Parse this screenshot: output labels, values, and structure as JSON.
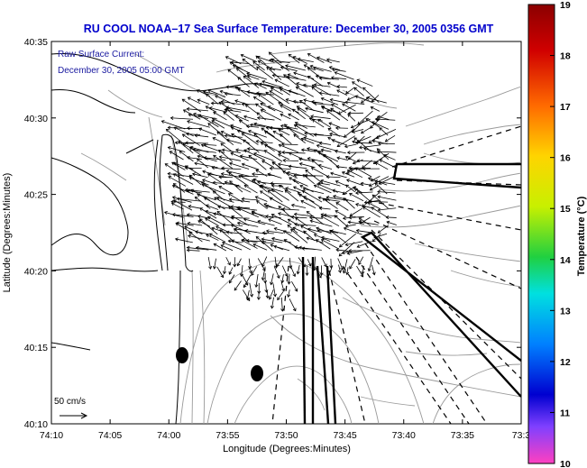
{
  "title": "RU COOL   NOAA–17  Sea Surface Temperature:  December 30, 2005 0356 GMT",
  "legend": {
    "line1": "Raw Surface Current:",
    "line2": "December 30, 2005 05:00 GMT"
  },
  "axes": {
    "xlabel": "Longitude (Degrees:Minutes)",
    "ylabel": "Latitude (Degrees:Minutes)",
    "xticks": [
      "74:10",
      "74:05",
      "74:00",
      "73:55",
      "73:50",
      "73:45",
      "73:40",
      "73:35",
      "73:3"
    ],
    "yticks": [
      "40:35",
      "40:30",
      "40:25",
      "40:20",
      "40:15",
      "40:10"
    ]
  },
  "scale_arrow": {
    "label": "50 cm/s"
  },
  "colorbar": {
    "label": "Temperature (°C)",
    "ticks": [
      "19",
      "18",
      "17",
      "16",
      "15",
      "14",
      "13",
      "12",
      "11",
      "10"
    ],
    "min": 10,
    "max": 19
  },
  "colors": {
    "title": "#0000cc",
    "legend_text": "#1a1aa0",
    "land_outline": "#000000",
    "contours": "#999999"
  }
}
